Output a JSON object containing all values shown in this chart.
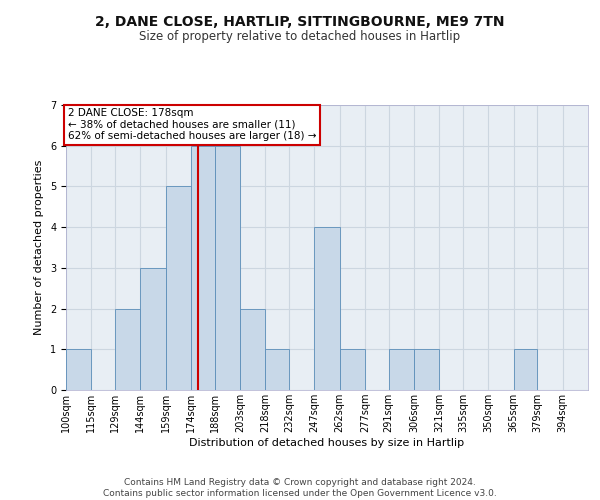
{
  "title1": "2, DANE CLOSE, HARTLIP, SITTINGBOURNE, ME9 7TN",
  "title2": "Size of property relative to detached houses in Hartlip",
  "xlabel": "Distribution of detached houses by size in Hartlip",
  "ylabel": "Number of detached properties",
  "bin_labels": [
    "100sqm",
    "115sqm",
    "129sqm",
    "144sqm",
    "159sqm",
    "174sqm",
    "188sqm",
    "203sqm",
    "218sqm",
    "232sqm",
    "247sqm",
    "262sqm",
    "277sqm",
    "291sqm",
    "306sqm",
    "321sqm",
    "335sqm",
    "350sqm",
    "365sqm",
    "379sqm",
    "394sqm"
  ],
  "bin_edges": [
    100,
    115,
    129,
    144,
    159,
    174,
    188,
    203,
    218,
    232,
    247,
    262,
    277,
    291,
    306,
    321,
    335,
    350,
    365,
    379,
    394
  ],
  "bar_heights": [
    1,
    0,
    2,
    3,
    5,
    6,
    6,
    2,
    1,
    0,
    4,
    1,
    0,
    1,
    1,
    0,
    0,
    0,
    1,
    0
  ],
  "bar_color": "#c8d8e8",
  "bar_edge_color": "#5b8db8",
  "vline_x": 178,
  "vline_color": "#cc0000",
  "annotation_text": "2 DANE CLOSE: 178sqm\n← 38% of detached houses are smaller (11)\n62% of semi-detached houses are larger (18) →",
  "annotation_box_color": "#ffffff",
  "annotation_box_edge_color": "#cc0000",
  "grid_color": "#ccd6e0",
  "background_color": "#e8eef4",
  "ylim": [
    0,
    7
  ],
  "yticks": [
    0,
    1,
    2,
    3,
    4,
    5,
    6,
    7
  ],
  "footer_text": "Contains HM Land Registry data © Crown copyright and database right 2024.\nContains public sector information licensed under the Open Government Licence v3.0.",
  "title1_fontsize": 10,
  "title2_fontsize": 8.5,
  "xlabel_fontsize": 8,
  "ylabel_fontsize": 8,
  "tick_fontsize": 7,
  "annotation_fontsize": 7.5,
  "footer_fontsize": 6.5
}
